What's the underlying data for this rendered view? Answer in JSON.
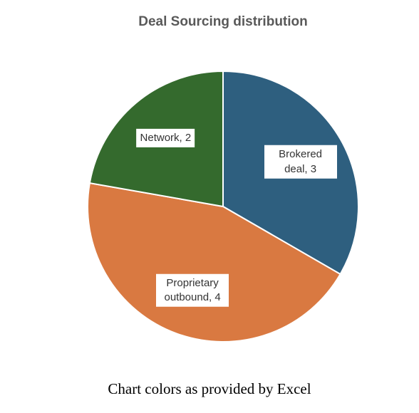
{
  "chart_data": {
    "type": "pie",
    "title": "Deal Sourcing distribution",
    "categories": [
      "Brokered deal",
      "Proprietary outbound",
      "Network"
    ],
    "values": [
      3,
      4,
      2
    ],
    "value_labels": [
      "Brokered deal, 3",
      "Proprietary outbound, 4",
      "Network, 2"
    ],
    "colors": [
      "#2e5f7f",
      "#d97941",
      "#346a2d"
    ]
  },
  "caption": "Chart colors as provided by Excel"
}
